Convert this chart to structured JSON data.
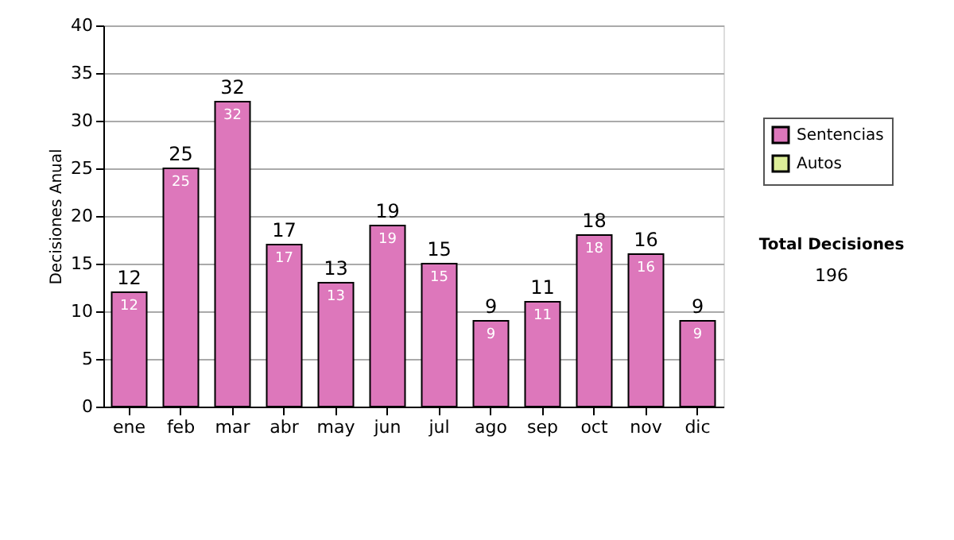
{
  "chart_data": {
    "type": "bar",
    "stacked": true,
    "ylabel": "Decisiones Anual",
    "categories": [
      "ene",
      "feb",
      "mar",
      "abr",
      "may",
      "jun",
      "jul",
      "ago",
      "sep",
      "oct",
      "nov",
      "dic"
    ],
    "series": [
      {
        "name": "Sentencias",
        "color": "#dd77bb",
        "values": [
          12,
          25,
          32,
          17,
          13,
          19,
          15,
          9,
          11,
          18,
          16,
          9
        ],
        "value_labels": [
          "12",
          "25",
          "32",
          "17",
          "13",
          "19",
          "15",
          "9",
          "11",
          "18",
          "16",
          "9"
        ]
      },
      {
        "name": "Autos",
        "color": "#ddee99",
        "values": [
          null,
          null,
          null,
          null,
          null,
          null,
          null,
          null,
          null,
          null,
          null,
          null
        ]
      }
    ],
    "totals": [
      "12",
      "25",
      "32",
      "17",
      "13",
      "19",
      "15",
      "9",
      "11",
      "18",
      "16",
      "9"
    ],
    "ylim": [
      0,
      40
    ],
    "yticks": [
      0,
      5,
      10,
      15,
      20,
      25,
      30,
      35,
      40
    ],
    "grid": "y",
    "legend": "right",
    "annotations": [
      "Total Decisiones",
      "196"
    ]
  }
}
